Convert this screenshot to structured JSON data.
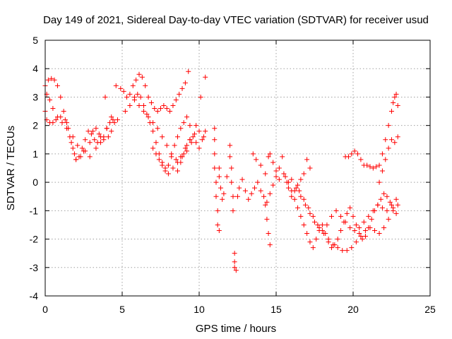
{
  "chart_data": {
    "type": "scatter",
    "title": "Day 149 of 2021, Sidereal Day-to-day VTEC variation (SDTVAR) for receiver usud",
    "xlabel": "GPS time / hours",
    "ylabel": "SDTVAR / TECUs",
    "xlim": [
      0,
      25
    ],
    "ylim": [
      -4,
      5
    ],
    "xticks": [
      "0",
      "5",
      "10",
      "15",
      "20",
      "25"
    ],
    "yticks": [
      "-4",
      "-3",
      "-2",
      "-1",
      "0",
      "1",
      "2",
      "3",
      "4",
      "5"
    ],
    "grid": true,
    "marker": "+",
    "color": "#ff0000",
    "series": [
      {
        "name": "SDTVAR",
        "x": [
          0.0,
          0.2,
          0.4,
          0.6,
          0.8,
          1.0,
          1.2,
          1.4,
          1.6,
          1.8,
          2.0,
          2.2,
          2.4,
          2.6,
          2.8,
          3.0,
          3.2,
          3.4,
          3.6,
          3.8,
          4.0,
          4.2,
          4.4,
          4.5,
          4.7,
          0.0,
          0.1,
          0.3,
          0.5,
          0.7,
          1.0,
          1.3,
          1.5,
          1.7,
          1.9,
          2.0,
          2.3,
          2.6,
          2.9,
          3.1,
          3.3,
          3.5,
          3.8,
          4.1,
          4.3,
          0.1,
          0.3,
          0.5,
          0.8,
          1.1,
          1.4,
          1.8,
          2.1,
          2.5,
          2.9,
          3.3,
          3.6,
          4.0,
          4.3,
          4.6,
          3.9,
          4.9,
          5.1,
          5.3,
          5.5,
          5.7,
          5.9,
          6.1,
          6.3,
          6.5,
          6.7,
          6.9,
          7.1,
          7.3,
          7.5,
          7.7,
          7.9,
          8.1,
          8.3,
          8.5,
          8.7,
          8.9,
          9.1,
          9.3,
          5.2,
          5.5,
          5.8,
          6.0,
          6.2,
          6.4,
          6.6,
          6.8,
          7.0,
          7.2,
          7.4,
          7.6,
          7.8,
          8.0,
          8.2,
          8.4,
          8.6,
          8.8,
          9.0,
          9.2,
          9.4,
          5.8,
          6.1,
          6.4,
          6.7,
          7.0,
          7.3,
          7.6,
          7.9,
          8.2,
          8.5,
          8.8,
          9.1,
          9.4,
          9.7,
          10.0,
          10.3,
          8.6,
          8.8,
          9.0,
          9.2,
          9.4,
          9.6,
          9.8,
          10.0,
          10.2,
          10.4,
          7.0,
          7.2,
          7.4,
          7.6,
          7.8,
          8.0,
          8.3,
          8.6,
          8.9,
          9.2,
          9.5,
          9.8,
          10.1,
          10.4,
          11.0,
          11.0,
          11.0,
          11.0,
          11.1,
          11.1,
          11.2,
          11.2,
          11.3,
          11.3,
          11.3,
          11.4,
          11.5,
          11.6,
          11.8,
          12.0,
          12.0,
          12.1,
          12.1,
          12.2,
          12.2,
          12.3,
          12.3,
          12.3,
          12.4,
          12.5,
          12.6,
          12.8,
          13.0,
          13.2,
          13.4,
          13.6,
          13.8,
          14.0,
          14.2,
          14.4,
          14.6,
          14.8,
          15.0,
          15.2,
          13.5,
          13.7,
          14.0,
          14.3,
          14.5,
          14.6,
          14.8,
          15.0,
          15.2,
          15.4,
          14.3,
          14.4,
          14.5,
          14.6,
          15.6,
          15.8,
          16.0,
          16.2,
          16.4,
          16.6,
          16.8,
          17.0,
          17.2,
          17.4,
          17.6,
          17.8,
          18.0,
          18.2,
          18.4,
          18.6,
          18.8,
          19.0,
          19.2,
          19.4,
          19.6,
          19.8,
          20.0,
          20.2,
          20.4,
          20.6,
          20.8,
          21.0,
          21.2,
          21.4,
          21.6,
          21.8,
          22.0,
          22.2,
          22.4,
          22.6,
          22.8,
          16.0,
          16.3,
          16.6,
          16.9,
          17.2,
          17.5,
          17.8,
          18.1,
          18.4,
          18.7,
          19.0,
          19.3,
          19.6,
          19.9,
          20.2,
          20.5,
          20.8,
          21.1,
          21.4,
          21.7,
          22.0,
          22.3,
          22.6,
          22.9,
          16.5,
          16.8,
          17.1,
          17.4,
          17.7,
          18.0,
          18.3,
          18.6,
          18.9,
          19.2,
          19.5,
          19.8,
          20.1,
          20.4,
          20.7,
          21.0,
          21.3,
          21.6,
          21.9,
          22.2,
          22.5,
          22.8,
          19.5,
          19.7,
          19.9,
          20.1,
          20.3,
          20.5,
          20.7,
          20.9,
          21.1,
          21.3,
          21.5,
          21.7,
          21.9,
          22.1,
          22.3,
          22.5,
          22.6,
          22.7,
          22.8,
          22.9,
          21.7,
          21.9,
          22.1,
          22.3,
          22.5,
          22.7,
          22.9,
          17.0,
          17.2,
          16.8,
          16.6,
          16.4,
          16.2,
          16.0,
          15.8,
          15.7,
          15.5
        ],
        "y": [
          3.4,
          3.6,
          3.65,
          3.6,
          3.4,
          3.0,
          2.5,
          2.1,
          1.6,
          1.2,
          0.8,
          0.9,
          1.2,
          1.5,
          1.8,
          1.7,
          1.5,
          1.4,
          1.4,
          1.6,
          1.9,
          2.1,
          2.2,
          2.1,
          2.2,
          2.5,
          2.2,
          2.1,
          2.1,
          2.2,
          2.3,
          2.2,
          1.9,
          1.4,
          1.0,
          0.8,
          0.9,
          1.1,
          1.4,
          1.8,
          1.9,
          1.7,
          1.5,
          1.6,
          1.8,
          3.1,
          2.9,
          2.6,
          2.3,
          2.1,
          1.9,
          1.6,
          1.3,
          1.1,
          0.9,
          1.2,
          1.6,
          1.9,
          2.3,
          3.4,
          3.0,
          3.3,
          3.2,
          3.0,
          3.1,
          3.4,
          3.6,
          3.8,
          3.7,
          3.4,
          3.0,
          2.8,
          2.6,
          2.5,
          2.6,
          2.7,
          2.6,
          2.5,
          2.7,
          2.9,
          3.1,
          3.3,
          3.5,
          3.9,
          2.5,
          2.7,
          2.9,
          3.1,
          3.0,
          2.7,
          2.4,
          2.1,
          1.8,
          1.4,
          1.0,
          0.7,
          0.5,
          0.6,
          0.9,
          1.3,
          1.6,
          1.9,
          2.1,
          2.3,
          2.0,
          3.0,
          2.7,
          2.5,
          2.3,
          2.1,
          1.9,
          1.6,
          1.3,
          1.0,
          0.8,
          0.9,
          1.2,
          1.5,
          1.7,
          1.8,
          1.6,
          0.4,
          0.7,
          1.0,
          1.3,
          1.5,
          1.6,
          1.4,
          1.2,
          1.5,
          1.8,
          1.2,
          1.0,
          0.8,
          0.6,
          0.4,
          0.3,
          0.5,
          0.7,
          0.9,
          1.1,
          1.4,
          2.0,
          3.0,
          3.7,
          1.9,
          1.5,
          1.0,
          0.5,
          0.0,
          -0.5,
          -1.0,
          -1.5,
          -1.7,
          0.5,
          0.2,
          -0.2,
          -0.6,
          -0.4,
          0.2,
          1.3,
          0.9,
          0.5,
          0.0,
          -0.5,
          -1.0,
          -2.5,
          -2.8,
          -3.0,
          -3.1,
          -0.5,
          -0.2,
          0.1,
          -0.3,
          -0.6,
          -0.4,
          -0.2,
          0.0,
          -0.3,
          -0.5,
          -0.7,
          -0.4,
          -0.1,
          0.2,
          0.5,
          1.0,
          0.8,
          0.6,
          0.3,
          0.9,
          1.0,
          0.7,
          0.4,
          0.1,
          0.9,
          -0.8,
          -1.3,
          -1.8,
          -2.2,
          0.2,
          0.0,
          -0.3,
          -0.6,
          -0.9,
          -1.2,
          -1.5,
          -1.8,
          -2.1,
          -2.3,
          -2.0,
          -1.7,
          -1.5,
          -1.8,
          -2.1,
          -2.3,
          -2.2,
          -2.0,
          -1.7,
          -1.4,
          -1.1,
          -0.9,
          -1.2,
          -1.5,
          -1.8,
          -2.0,
          -1.9,
          -1.6,
          -1.3,
          -1.0,
          -0.8,
          -0.6,
          -0.4,
          -0.5,
          -0.7,
          -0.9,
          -1.1,
          0.1,
          -0.2,
          -0.5,
          -0.8,
          -1.1,
          -1.4,
          -1.6,
          -1.8,
          -2.0,
          -2.2,
          -2.3,
          -2.4,
          -2.4,
          -2.3,
          -2.1,
          -1.9,
          -1.7,
          -1.6,
          -1.7,
          -1.8,
          -1.6,
          -1.3,
          -1.0,
          -0.8,
          -0.3,
          -0.6,
          -0.9,
          -1.2,
          -1.5,
          -1.7,
          -1.5,
          -1.2,
          -1.0,
          -1.2,
          -1.4,
          -1.6,
          -1.7,
          -1.6,
          -1.4,
          -1.2,
          -1.0,
          -0.8,
          -0.9,
          -1.0,
          -0.8,
          -0.6,
          0.9,
          0.9,
          1.0,
          1.1,
          1.0,
          0.8,
          0.6,
          0.6,
          0.55,
          0.5,
          0.55,
          0.6,
          1.0,
          1.5,
          2.0,
          2.5,
          2.8,
          3.0,
          3.1,
          2.7,
          0.0,
          0.4,
          0.8,
          1.2,
          1.5,
          1.4,
          1.6,
          0.8,
          0.5,
          0.3,
          0.1,
          -0.1,
          -0.3,
          -0.5,
          -0.2,
          0.0,
          0.3
        ]
      }
    ]
  }
}
